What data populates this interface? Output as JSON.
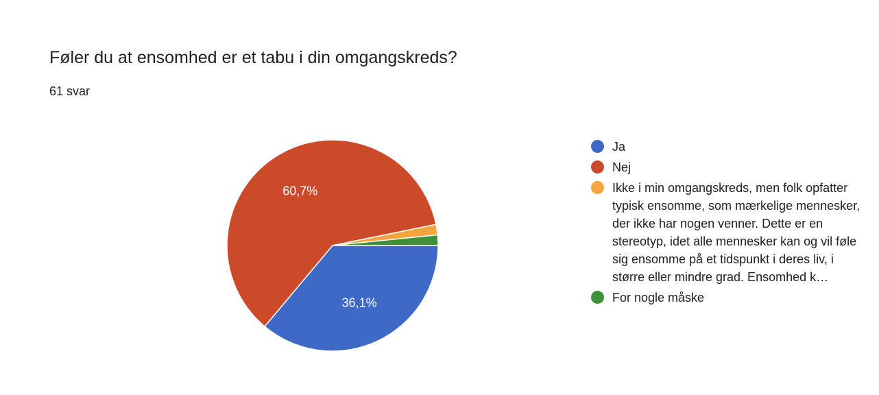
{
  "header": {
    "title": "Føler du at ensomhed er et tabu i din omgangskreds?",
    "response_count": "61 svar"
  },
  "chart_data": {
    "type": "pie",
    "title": "Føler du at ensomhed er et tabu i din omgangskreds?",
    "slices": [
      {
        "label": "Ja",
        "value": 36.1,
        "display": "36,1%",
        "color": "#3e69c7"
      },
      {
        "label": "Nej",
        "value": 60.7,
        "display": "60,7%",
        "color": "#cc4a2a"
      },
      {
        "label": "Ikke i min omgangskreds, men folk opfatter typisk ensomme, som mærkelige mennesker, der ikke har nogen venner. Dette er en stereotyp, idet alle mennesker kan og vil føle sig ensomme på et tidspunkt i deres liv, i større eller mindre grad. Ensomhed k…",
        "value": 1.6,
        "display": "",
        "color": "#f4a43c"
      },
      {
        "label": "For nogle måske",
        "value": 1.6,
        "display": "",
        "color": "#3e913a"
      }
    ],
    "legend_position": "right"
  }
}
